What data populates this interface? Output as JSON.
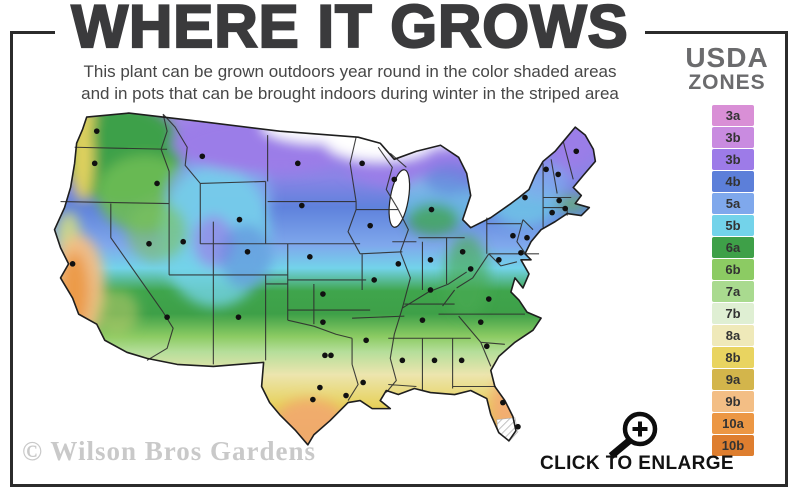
{
  "header": {
    "title": "WHERE IT GROWS",
    "subtitle_line1": "This plant can be grown outdoors year round in the color shaded areas",
    "subtitle_line2": "and in pots that can be brought indoors during winter in the striped area"
  },
  "legend": {
    "heading_top": "USDA",
    "heading_bottom": "ZONES",
    "zones": [
      {
        "label": "3a",
        "color": "#D98FD6"
      },
      {
        "label": "3b",
        "color": "#C98BE0"
      },
      {
        "label": "3b",
        "color": "#9D7BE8"
      },
      {
        "label": "4b",
        "color": "#5C7FD9"
      },
      {
        "label": "5a",
        "color": "#7FA8EC"
      },
      {
        "label": "5b",
        "color": "#73D3EA"
      },
      {
        "label": "6a",
        "color": "#3EA048"
      },
      {
        "label": "6b",
        "color": "#8CCB63"
      },
      {
        "label": "7a",
        "color": "#A9DA8F"
      },
      {
        "label": "7b",
        "color": "#DFEFD3"
      },
      {
        "label": "8a",
        "color": "#EFE9B9"
      },
      {
        "label": "8b",
        "color": "#E9D460"
      },
      {
        "label": "9a",
        "color": "#D3B54B"
      },
      {
        "label": "9b",
        "color": "#F3BE85"
      },
      {
        "label": "10a",
        "color": "#EC9744"
      },
      {
        "label": "10b",
        "color": "#DE7E2F"
      }
    ]
  },
  "footer": {
    "watermark": "© Wilson Bros Gardens",
    "enlarge_label": "CLICK TO ENLARGE"
  },
  "frame_color": "#2b2b2b",
  "map": {
    "outline_color": "#1e1e1e",
    "state_line_color": "#2d2d2d",
    "dot_color": "#111111",
    "gradient_stops": [
      [
        "0",
        "#A88EE8"
      ],
      [
        "0.10",
        "#9B7DE8"
      ],
      [
        "0.20",
        "#8A84E6"
      ],
      [
        "0.28",
        "#5F82DC"
      ],
      [
        "0.38",
        "#7FA8EC"
      ],
      [
        "0.44",
        "#73D3EA"
      ],
      [
        "0.50",
        "#3FA54C"
      ],
      [
        "0.56",
        "#3EA048"
      ],
      [
        "0.62",
        "#8CCB63"
      ],
      [
        "0.66",
        "#B5DE9A"
      ],
      [
        "0.72",
        "#ECE5AE"
      ],
      [
        "0.80",
        "#E7D25E"
      ],
      [
        "0.875",
        "#D4B74F"
      ],
      [
        "0.94",
        "#ECB276"
      ],
      [
        "1",
        "#F0A45F"
      ]
    ],
    "zone_regions": [
      [
        105,
        52,
        60,
        50,
        "#3EA048",
        1
      ],
      [
        128,
        92,
        48,
        38,
        "#6DBB54",
        0.9
      ],
      [
        66,
        55,
        11,
        45,
        "#E9D460",
        0.95
      ],
      [
        70,
        18,
        9,
        12,
        "#E9D460",
        0.8
      ],
      [
        52,
        135,
        12,
        25,
        "#D9E27A",
        0.8
      ],
      [
        62,
        185,
        26,
        52,
        "#F3BE85",
        0.95
      ],
      [
        58,
        188,
        14,
        38,
        "#EC9744",
        0.9
      ],
      [
        100,
        210,
        22,
        22,
        "#C9CF6E",
        0.5
      ],
      [
        202,
        95,
        52,
        42,
        "#7FA8EC",
        0.9
      ],
      [
        198,
        135,
        55,
        70,
        "#73D3EA",
        0.8
      ],
      [
        196,
        140,
        20,
        26,
        "#9D7BE8",
        0.65
      ],
      [
        228,
        155,
        26,
        32,
        "#5C7FD9",
        0.5
      ],
      [
        140,
        130,
        30,
        30,
        "#7CC35F",
        0.6
      ],
      [
        250,
        42,
        95,
        30,
        "#9B7DE8",
        1
      ],
      [
        400,
        62,
        75,
        26,
        "#9B7DE8",
        0.95
      ],
      [
        302,
        24,
        58,
        18,
        "#FFFFFF",
        1
      ],
      [
        362,
        40,
        55,
        20,
        "#FFFFFF",
        1
      ],
      [
        420,
        32,
        30,
        14,
        "#FFFFFF",
        0.9
      ],
      [
        548,
        44,
        24,
        24,
        "#9B7DE8",
        0.95
      ],
      [
        520,
        60,
        18,
        14,
        "#8A84E6",
        0.8
      ],
      [
        420,
        100,
        40,
        26,
        "#73D3EA",
        0.6
      ],
      [
        432,
        78,
        26,
        16,
        "#5C7FD9",
        0.6
      ],
      [
        415,
        118,
        26,
        16,
        "#3EA048",
        0.75
      ],
      [
        505,
        100,
        35,
        24,
        "#73D3EA",
        0.7
      ],
      [
        525,
        80,
        25,
        18,
        "#7FA8EC",
        0.75
      ],
      [
        552,
        102,
        16,
        9,
        "#6DBB54",
        0.65
      ],
      [
        448,
        175,
        22,
        42,
        "#49AB52",
        0.65
      ],
      [
        292,
        322,
        36,
        26,
        "#F2A96E",
        0.9
      ],
      [
        487,
        303,
        16,
        26,
        "#F2AC72",
        0.95
      ]
    ],
    "dots": [
      [
        80,
        30
      ],
      [
        78,
        62
      ],
      [
        56,
        162
      ],
      [
        132,
        142
      ],
      [
        140,
        82
      ],
      [
        185,
        55
      ],
      [
        222,
        118
      ],
      [
        166,
        140
      ],
      [
        230,
        150
      ],
      [
        150,
        215
      ],
      [
        221,
        215
      ],
      [
        280,
        62
      ],
      [
        284,
        104
      ],
      [
        292,
        155
      ],
      [
        305,
        192
      ],
      [
        305,
        220
      ],
      [
        307,
        253
      ],
      [
        313,
        253
      ],
      [
        302,
        285
      ],
      [
        295,
        297
      ],
      [
        328,
        293
      ],
      [
        345,
        280
      ],
      [
        384,
        258
      ],
      [
        416,
        258
      ],
      [
        443,
        258
      ],
      [
        468,
        244
      ],
      [
        462,
        220
      ],
      [
        470,
        197
      ],
      [
        452,
        167
      ],
      [
        412,
        188
      ],
      [
        404,
        218
      ],
      [
        356,
        178
      ],
      [
        348,
        238
      ],
      [
        352,
        124
      ],
      [
        344,
        62
      ],
      [
        376,
        78
      ],
      [
        380,
        162
      ],
      [
        412,
        158
      ],
      [
        444,
        150
      ],
      [
        413,
        108
      ],
      [
        494,
        134
      ],
      [
        506,
        96
      ],
      [
        508,
        136
      ],
      [
        502,
        151
      ],
      [
        480,
        158
      ],
      [
        527,
        68
      ],
      [
        539,
        73
      ],
      [
        557,
        50
      ],
      [
        540,
        99
      ],
      [
        533,
        111
      ],
      [
        546,
        107
      ],
      [
        484,
        300
      ],
      [
        499,
        324
      ]
    ]
  }
}
